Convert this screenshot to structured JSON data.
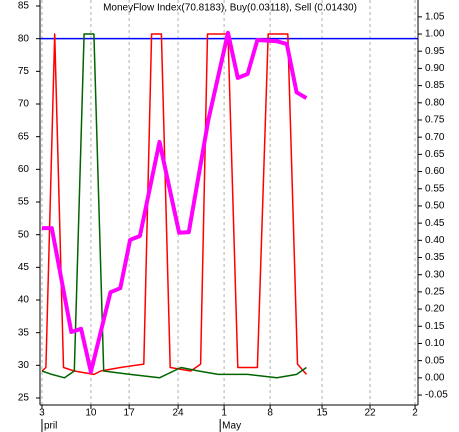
{
  "chart_data": {
    "type": "line",
    "title": "MoneyFlow Index(70.8183), Buy(0.03118), Sell (0.01430)",
    "xlim": [
      -0.2,
      38.4
    ],
    "xticks": [
      {
        "value": 0,
        "label": "3"
      },
      {
        "value": 5,
        "label": "10"
      },
      {
        "value": 8.9,
        "label": "17"
      },
      {
        "value": 13.9,
        "label": "24"
      },
      {
        "value": 18.6,
        "label": "1"
      },
      {
        "value": 23.3,
        "label": "8"
      },
      {
        "value": 28.6,
        "label": "15"
      },
      {
        "value": 33.5,
        "label": "22"
      },
      {
        "value": 38.1,
        "label": "2"
      }
    ],
    "xmonths": [
      {
        "value": 0,
        "label": "pril"
      },
      {
        "value": 18.2,
        "label": "May"
      }
    ],
    "ylim": [
      23.93,
      85.92
    ],
    "yticks": [
      25,
      30,
      35,
      40,
      45,
      50,
      55,
      60,
      65,
      70,
      75,
      80,
      85
    ],
    "y2lim": [
      -0.079,
      1.099
    ],
    "y2ticks": [
      1.05,
      {
        "value": 1,
        "label": "1.00"
      },
      0.95,
      {
        "value": 0.9,
        "label": "0.90"
      },
      0.85,
      {
        "value": 0.8,
        "label": "0.80"
      },
      0.75,
      {
        "value": 0.7,
        "label": "0.70"
      },
      0.65,
      {
        "value": 0.6,
        "label": "0.60"
      },
      0.55,
      {
        "value": 0.5,
        "label": "0.50"
      },
      0.45,
      {
        "value": 0.4,
        "label": "0.40"
      },
      0.35,
      {
        "value": 0.3,
        "label": "0.30"
      },
      0.25,
      {
        "value": 0.2,
        "label": "0.20"
      },
      0.15,
      {
        "value": 0.1,
        "label": "0.10"
      },
      0.05,
      {
        "value": 0,
        "label": "0.00"
      },
      -0.05
    ],
    "vgrid": true,
    "hline": {
      "value": 80,
      "color": "#0000ff"
    },
    "series": [
      {
        "color": "#ff0000",
        "axis": "y2",
        "width": 1.5,
        "x": [
          0,
          0.4,
          1.3,
          2.2,
          3.3,
          5.3,
          6,
          8,
          10.4,
          11.2,
          12.2,
          13.1,
          15.2,
          16.2,
          16.9,
          19,
          20,
          22,
          23.1,
          25.1,
          26.1,
          27
        ],
        "values": [
          0.02,
          0.03,
          1.0,
          0.03,
          0.02,
          0.01,
          0.02,
          0.03,
          0.04,
          1.0,
          1.0,
          0.03,
          0.02,
          0.04,
          1.0,
          1.0,
          0.03,
          0.03,
          1.0,
          1.0,
          0.04,
          0.01
        ]
      },
      {
        "color": "#006400",
        "axis": "y2",
        "width": 1.5,
        "x": [
          0,
          1,
          2.3,
          3.3,
          4.3,
          5.3,
          6.3,
          9,
          12,
          14.2,
          16,
          18,
          21,
          24,
          26,
          27
        ],
        "values": [
          0.02,
          0.01,
          0.0,
          0.02,
          1.0,
          1.0,
          0.02,
          0.01,
          0.0,
          0.03,
          0.02,
          0.01,
          0.01,
          0.0,
          0.01,
          0.03
        ]
      },
      {
        "color": "#ff00ff",
        "axis": "y",
        "width": 4,
        "x": [
          0,
          1,
          3,
          4,
          5,
          7,
          8,
          9,
          10,
          12,
          14,
          15,
          17,
          19,
          20,
          21,
          22,
          24,
          25,
          26,
          27
        ],
        "values": [
          51.0,
          51.0,
          35.1,
          35.6,
          29.0,
          41.2,
          41.8,
          49.2,
          49.8,
          64.2,
          50.3,
          50.4,
          67.6,
          80.9,
          74.0,
          74.6,
          79.8,
          79.6,
          79.2,
          71.8,
          70.9
        ]
      }
    ]
  }
}
